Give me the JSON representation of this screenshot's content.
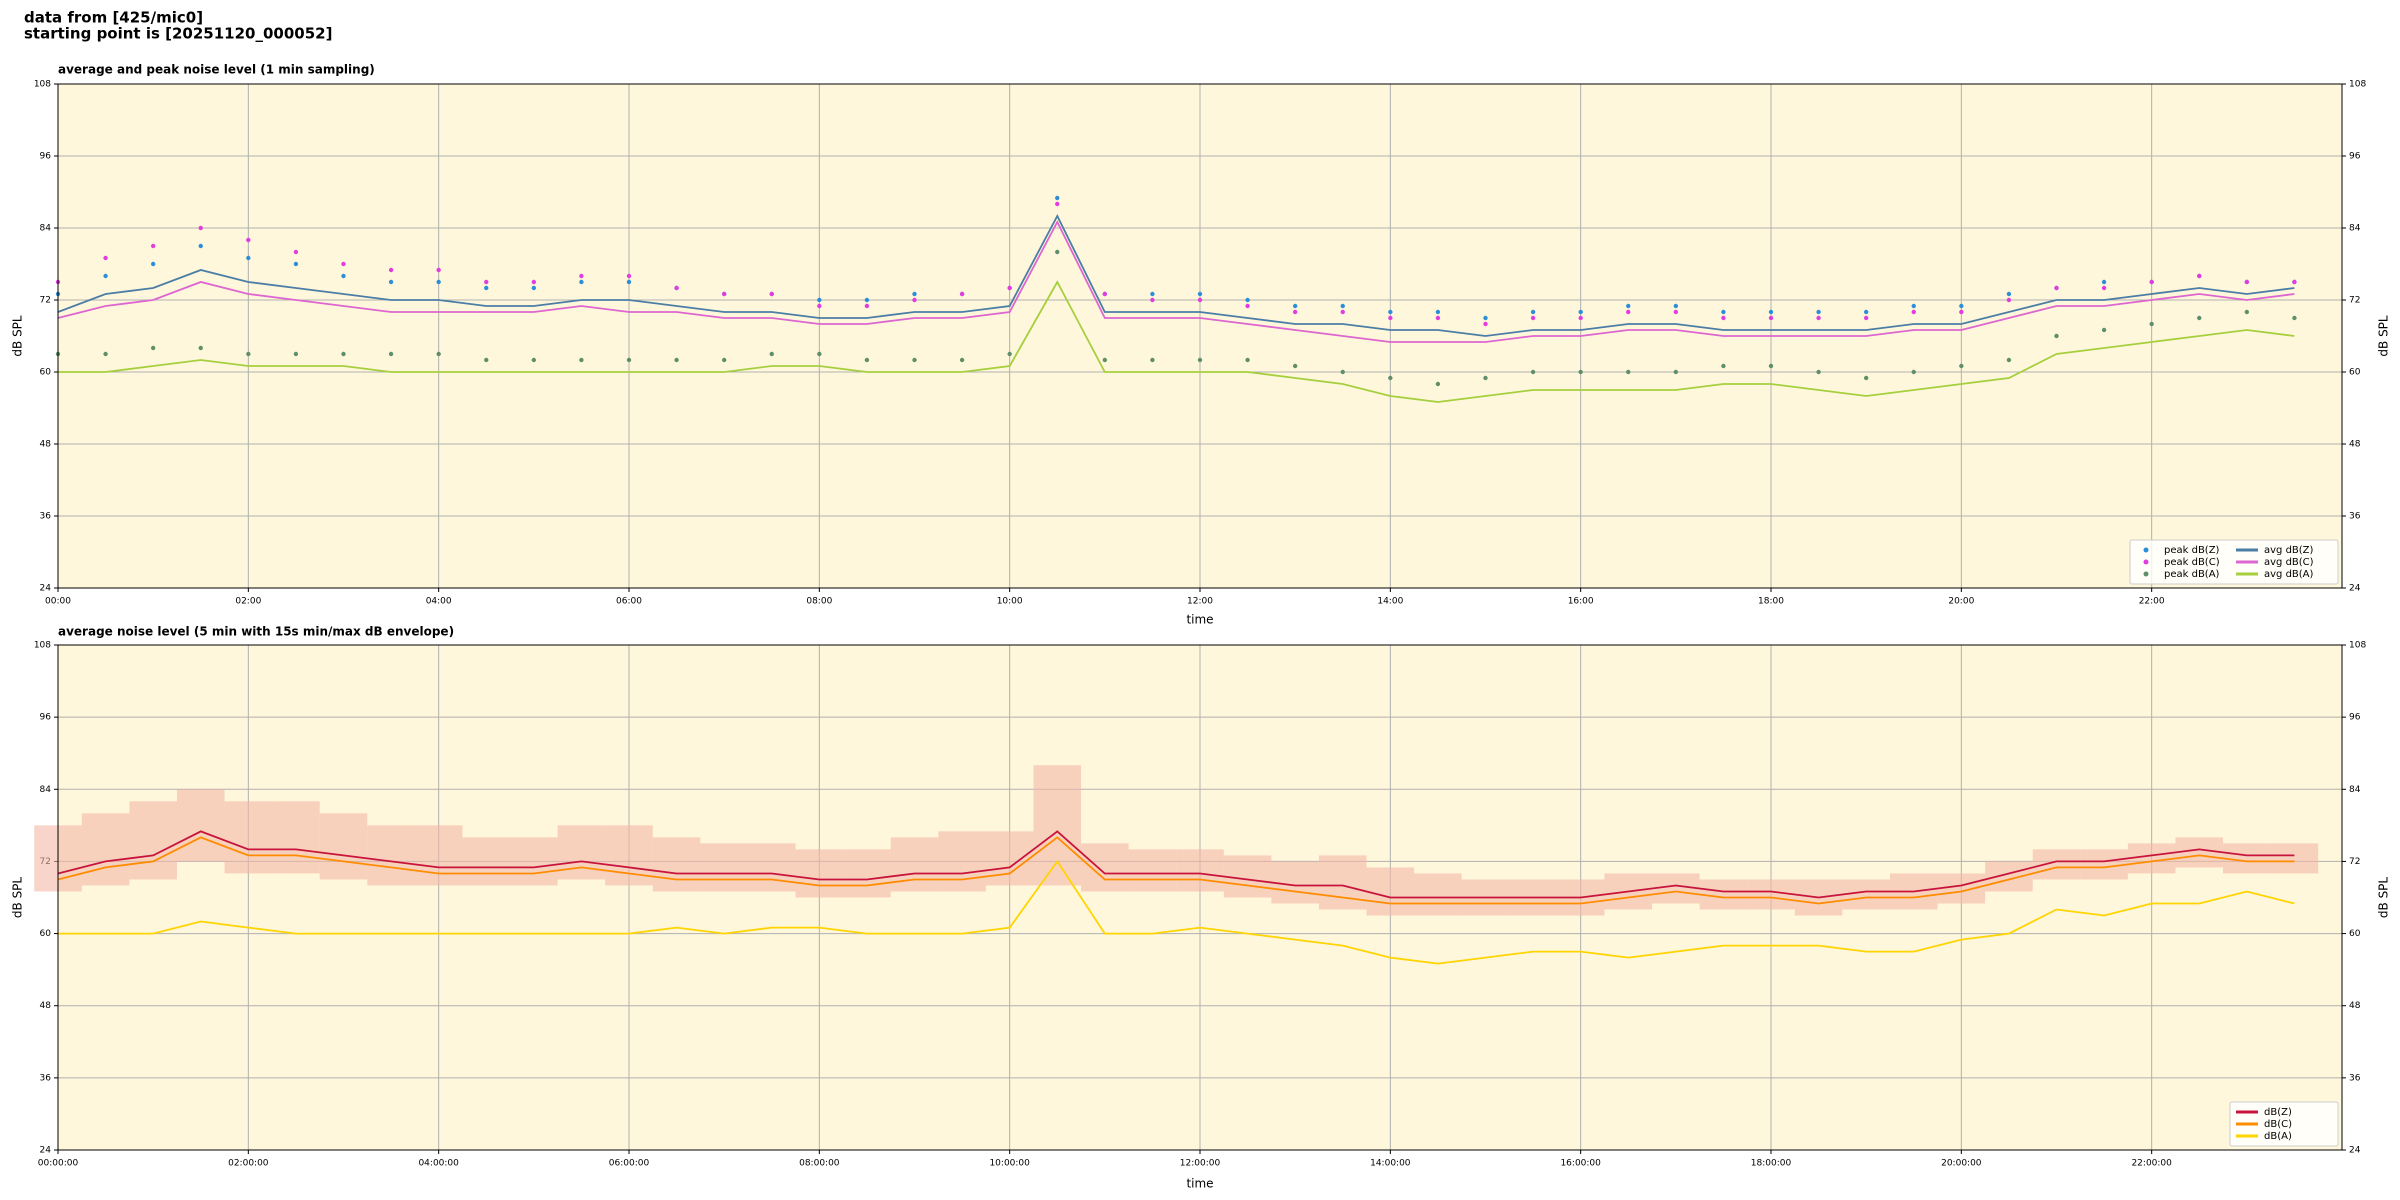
{
  "header": {
    "line1": "data from [425/mic0]",
    "line2": "starting point is [20251120_000052]"
  },
  "chart_data": [
    {
      "type": "line",
      "title": "average and peak noise level (1 min sampling)",
      "xlabel": "time",
      "ylabel": "dB SPL",
      "background": "#fff7dc",
      "grid": true,
      "legend": "lower right",
      "legend_ncol": 2,
      "xlim": [
        0,
        24
      ],
      "ylim": [
        24,
        108
      ],
      "xticks": [
        {
          "value": 0,
          "label": "00:00"
        },
        {
          "value": 2,
          "label": "02:00"
        },
        {
          "value": 4,
          "label": "04:00"
        },
        {
          "value": 6,
          "label": "06:00"
        },
        {
          "value": 8,
          "label": "08:00"
        },
        {
          "value": 10,
          "label": "10:00"
        },
        {
          "value": 12,
          "label": "12:00"
        },
        {
          "value": 14,
          "label": "14:00"
        },
        {
          "value": 16,
          "label": "16:00"
        },
        {
          "value": 18,
          "label": "18:00"
        },
        {
          "value": 20,
          "label": "20:00"
        },
        {
          "value": 22,
          "label": "22:00"
        }
      ],
      "yticks": [
        24,
        36,
        48,
        60,
        72,
        84,
        96,
        108
      ],
      "x": [
        0,
        0.5,
        1,
        1.5,
        2,
        2.5,
        3,
        3.5,
        4,
        4.5,
        5,
        5.5,
        6,
        6.5,
        7,
        7.5,
        8,
        8.5,
        9,
        9.5,
        10,
        10.5,
        11,
        11.5,
        12,
        12.5,
        13,
        13.5,
        14,
        14.5,
        15,
        15.5,
        16,
        16.5,
        17,
        17.5,
        18,
        18.5,
        19,
        19.5,
        20,
        20.5,
        21,
        21.5,
        22,
        22.5,
        23,
        23.5
      ],
      "series": [
        {
          "name": "peak dB(Z)",
          "type": "scatter",
          "color": "#2a8fd8",
          "values": [
            73,
            76,
            78,
            81,
            79,
            78,
            76,
            75,
            75,
            74,
            74,
            75,
            75,
            74,
            73,
            73,
            72,
            72,
            73,
            73,
            74,
            89,
            73,
            73,
            73,
            72,
            71,
            71,
            70,
            70,
            69,
            70,
            70,
            71,
            71,
            70,
            70,
            70,
            70,
            71,
            71,
            73,
            74,
            75,
            75,
            76,
            75,
            75
          ]
        },
        {
          "name": "peak dB(C)",
          "type": "scatter",
          "color": "#e23be0",
          "values": [
            75,
            79,
            81,
            84,
            82,
            80,
            78,
            77,
            77,
            75,
            75,
            76,
            76,
            74,
            73,
            73,
            71,
            71,
            72,
            73,
            74,
            88,
            73,
            72,
            72,
            71,
            70,
            70,
            69,
            69,
            68,
            69,
            69,
            70,
            70,
            69,
            69,
            69,
            69,
            70,
            70,
            72,
            74,
            74,
            75,
            76,
            75,
            75
          ]
        },
        {
          "name": "peak dB(A)",
          "type": "scatter",
          "color": "#5f8f6a",
          "values": [
            63,
            63,
            64,
            64,
            63,
            63,
            63,
            63,
            63,
            62,
            62,
            62,
            62,
            62,
            62,
            63,
            63,
            62,
            62,
            62,
            63,
            80,
            62,
            62,
            62,
            62,
            61,
            60,
            59,
            58,
            59,
            60,
            60,
            60,
            60,
            61,
            61,
            60,
            59,
            60,
            61,
            62,
            66,
            67,
            68,
            69,
            70,
            69
          ]
        },
        {
          "name": "avg dB(Z)",
          "type": "line",
          "color": "#4b7ea6",
          "values": [
            70,
            73,
            74,
            77,
            75,
            74,
            73,
            72,
            72,
            71,
            71,
            72,
            72,
            71,
            70,
            70,
            69,
            69,
            70,
            70,
            71,
            86,
            70,
            70,
            70,
            69,
            68,
            68,
            67,
            67,
            66,
            67,
            67,
            68,
            68,
            67,
            67,
            67,
            67,
            68,
            68,
            70,
            72,
            72,
            73,
            74,
            73,
            74
          ]
        },
        {
          "name": "avg dB(C)",
          "type": "line",
          "color": "#dd66d0",
          "values": [
            69,
            71,
            72,
            75,
            73,
            72,
            71,
            70,
            70,
            70,
            70,
            71,
            70,
            70,
            69,
            69,
            68,
            68,
            69,
            69,
            70,
            85,
            69,
            69,
            69,
            68,
            67,
            66,
            65,
            65,
            65,
            66,
            66,
            67,
            67,
            66,
            66,
            66,
            66,
            67,
            67,
            69,
            71,
            71,
            72,
            73,
            72,
            73
          ]
        },
        {
          "name": "avg dB(A)",
          "type": "line",
          "color": "#a6cf3e",
          "values": [
            60,
            60,
            61,
            62,
            61,
            61,
            61,
            60,
            60,
            60,
            60,
            60,
            60,
            60,
            60,
            61,
            61,
            60,
            60,
            60,
            61,
            75,
            60,
            60,
            60,
            60,
            59,
            58,
            56,
            55,
            56,
            57,
            57,
            57,
            57,
            58,
            58,
            57,
            56,
            57,
            58,
            59,
            63,
            64,
            65,
            66,
            67,
            66
          ]
        }
      ]
    },
    {
      "type": "line",
      "title": "average noise level (5 min with 15s min/max dB envelope)",
      "xlabel": "time",
      "ylabel": "dB SPL",
      "background": "#fff7dc",
      "grid": true,
      "legend": "lower right",
      "legend_ncol": 1,
      "xlim": [
        0,
        24
      ],
      "ylim": [
        24,
        108
      ],
      "xticks": [
        {
          "value": 0,
          "label": "00:00:00"
        },
        {
          "value": 2,
          "label": "02:00:00"
        },
        {
          "value": 4,
          "label": "04:00:00"
        },
        {
          "value": 6,
          "label": "06:00:00"
        },
        {
          "value": 8,
          "label": "08:00:00"
        },
        {
          "value": 10,
          "label": "10:00:00"
        },
        {
          "value": 12,
          "label": "12:00:00"
        },
        {
          "value": 14,
          "label": "14:00:00"
        },
        {
          "value": 16,
          "label": "16:00:00"
        },
        {
          "value": 18,
          "label": "18:00:00"
        },
        {
          "value": 20,
          "label": "20:00:00"
        },
        {
          "value": 22,
          "label": "22:00:00"
        }
      ],
      "yticks": [
        24,
        36,
        48,
        60,
        72,
        84,
        96,
        108
      ],
      "x": [
        0,
        0.5,
        1,
        1.5,
        2,
        2.5,
        3,
        3.5,
        4,
        4.5,
        5,
        5.5,
        6,
        6.5,
        7,
        7.5,
        8,
        8.5,
        9,
        9.5,
        10,
        10.5,
        11,
        11.5,
        12,
        12.5,
        13,
        13.5,
        14,
        14.5,
        15,
        15.5,
        16,
        16.5,
        17,
        17.5,
        18,
        18.5,
        19,
        19.5,
        20,
        20.5,
        21,
        21.5,
        22,
        22.5,
        23,
        23.5
      ],
      "envelope": {
        "color": "#f3b8a6",
        "lower": [
          67,
          68,
          69,
          72,
          70,
          70,
          69,
          68,
          68,
          68,
          68,
          69,
          68,
          67,
          67,
          67,
          66,
          66,
          67,
          67,
          68,
          68,
          67,
          67,
          67,
          66,
          65,
          64,
          63,
          63,
          63,
          63,
          63,
          64,
          65,
          64,
          64,
          63,
          64,
          64,
          65,
          67,
          69,
          69,
          70,
          71,
          70,
          70
        ],
        "upper": [
          78,
          80,
          82,
          84,
          82,
          82,
          80,
          78,
          78,
          76,
          76,
          78,
          78,
          76,
          75,
          75,
          74,
          74,
          76,
          77,
          77,
          88,
          75,
          74,
          74,
          73,
          72,
          73,
          71,
          70,
          69,
          69,
          69,
          70,
          70,
          69,
          69,
          69,
          69,
          70,
          70,
          72,
          74,
          74,
          75,
          76,
          75,
          75
        ]
      },
      "series": [
        {
          "name": "dB(Z)",
          "type": "line",
          "color": "#c8143c",
          "values": [
            70,
            72,
            73,
            77,
            74,
            74,
            73,
            72,
            71,
            71,
            71,
            72,
            71,
            70,
            70,
            70,
            69,
            69,
            70,
            70,
            71,
            77,
            70,
            70,
            70,
            69,
            68,
            68,
            66,
            66,
            66,
            66,
            66,
            67,
            68,
            67,
            67,
            66,
            67,
            67,
            68,
            70,
            72,
            72,
            73,
            74,
            73,
            73
          ]
        },
        {
          "name": "dB(C)",
          "type": "line",
          "color": "#ff8c00",
          "values": [
            69,
            71,
            72,
            76,
            73,
            73,
            72,
            71,
            70,
            70,
            70,
            71,
            70,
            69,
            69,
            69,
            68,
            68,
            69,
            69,
            70,
            76,
            69,
            69,
            69,
            68,
            67,
            66,
            65,
            65,
            65,
            65,
            65,
            66,
            67,
            66,
            66,
            65,
            66,
            66,
            67,
            69,
            71,
            71,
            72,
            73,
            72,
            72
          ]
        },
        {
          "name": "dB(A)",
          "type": "line",
          "color": "#ffd400",
          "values": [
            60,
            60,
            60,
            62,
            61,
            60,
            60,
            60,
            60,
            60,
            60,
            60,
            60,
            61,
            60,
            61,
            61,
            60,
            60,
            60,
            61,
            72,
            60,
            60,
            61,
            60,
            59,
            58,
            56,
            55,
            56,
            57,
            57,
            56,
            57,
            58,
            58,
            58,
            57,
            57,
            59,
            60,
            64,
            63,
            65,
            65,
            67,
            65
          ]
        }
      ]
    }
  ]
}
